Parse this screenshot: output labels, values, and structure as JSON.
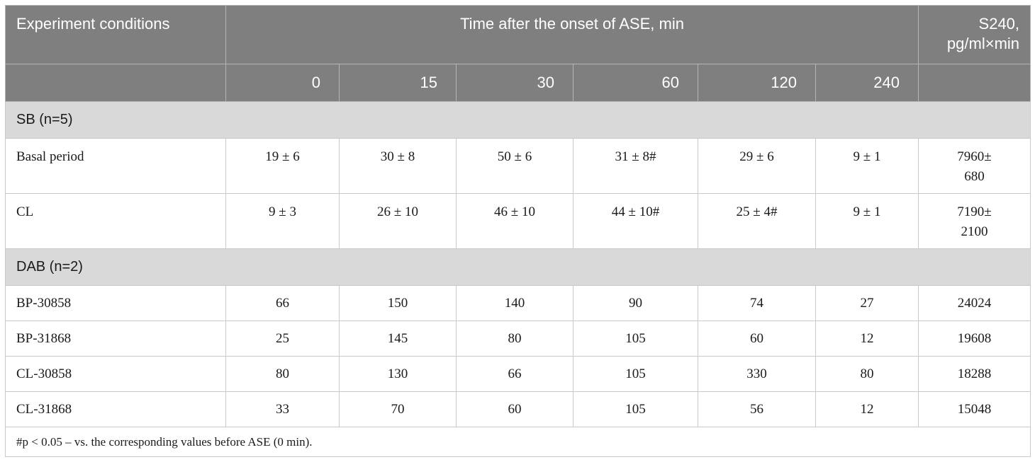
{
  "header": {
    "conditions": "Experiment conditions",
    "time": "Time after the onset of ASE, min",
    "s240_line1": "S240,",
    "s240_line2": "pg/ml×min",
    "times": [
      "0",
      "15",
      "30",
      "60",
      "120",
      "240"
    ]
  },
  "groups": [
    {
      "label": "SB (n=5)",
      "rows": [
        {
          "label": "Basal period",
          "values": [
            "19 ± 6",
            "30 ± 8",
            "50 ± 6",
            "31 ± 8#",
            "29 ± 6",
            "9 ± 1"
          ],
          "s240_line1": "7960±",
          "s240_line2": "680"
        },
        {
          "label": "CL",
          "values": [
            "9 ± 3",
            "26 ± 10",
            "46 ± 10",
            "44 ± 10#",
            "25 ± 4#",
            "9 ± 1"
          ],
          "s240_line1": "7190±",
          "s240_line2": "2100"
        }
      ]
    },
    {
      "label": "DAB (n=2)",
      "rows": [
        {
          "label": "BP-30858",
          "values": [
            "66",
            "150",
            "140",
            "90",
            "74",
            "27"
          ],
          "s240": "24024"
        },
        {
          "label": "BP-31868",
          "values": [
            "25",
            "145",
            "80",
            "105",
            "60",
            "12"
          ],
          "s240": "19608"
        },
        {
          "label": "CL-30858",
          "values": [
            "80",
            "130",
            "66",
            "105",
            "330",
            "80"
          ],
          "s240": "18288"
        },
        {
          "label": "CL-31868",
          "values": [
            "33",
            "70",
            "60",
            "105",
            "56",
            "12"
          ],
          "s240": "15048"
        }
      ]
    }
  ],
  "footnote": "#p < 0.05 – vs. the corresponding values before ASE (0 min)."
}
